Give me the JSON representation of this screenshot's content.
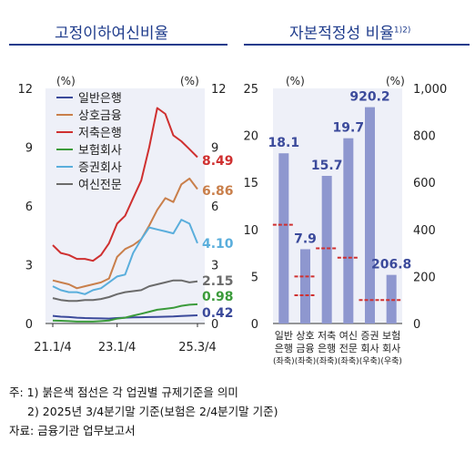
{
  "titles": {
    "left": "고정이하여신비율",
    "right": "자본적정성 비율",
    "right_sup": "1)2)"
  },
  "chart_data": [
    {
      "type": "line",
      "title": "고정이하여신비율",
      "unit_left": "(%)",
      "unit_right": "(%)",
      "ylim": [
        0,
        12
      ],
      "yticks": [
        "0",
        "3",
        "6",
        "9",
        "12"
      ],
      "x_tick_labels": [
        "21.1/4",
        "23.1/4",
        "25.3/4"
      ],
      "x": [
        "21.1/4",
        "21.2/4",
        "21.3/4",
        "21.4/4",
        "22.1/4",
        "22.2/4",
        "22.3/4",
        "22.4/4",
        "23.1/4",
        "23.2/4",
        "23.3/4",
        "23.4/4",
        "24.1/4",
        "24.2/4",
        "24.3/4",
        "24.4/4",
        "25.1/4",
        "25.2/4",
        "25.3/4"
      ],
      "legend_position": "top-left",
      "series": [
        {
          "name": "일반은행",
          "color": "#3b4a9b",
          "end_label": "0.42",
          "values": [
            0.39,
            0.35,
            0.33,
            0.3,
            0.28,
            0.27,
            0.26,
            0.25,
            0.28,
            0.3,
            0.31,
            0.32,
            0.33,
            0.34,
            0.35,
            0.36,
            0.38,
            0.4,
            0.42
          ]
        },
        {
          "name": "상호금융",
          "color": "#c97f4b",
          "end_label": "6.86",
          "values": [
            2.2,
            2.1,
            2.0,
            1.8,
            1.9,
            2.0,
            2.1,
            2.3,
            3.4,
            3.8,
            4.0,
            4.3,
            5.0,
            5.8,
            6.4,
            6.2,
            7.1,
            7.4,
            6.86
          ]
        },
        {
          "name": "저축은행",
          "color": "#cf3030",
          "end_label": "8.49",
          "values": [
            4.0,
            3.6,
            3.5,
            3.3,
            3.3,
            3.2,
            3.5,
            4.1,
            5.1,
            5.5,
            6.4,
            7.3,
            9.0,
            11.0,
            10.7,
            9.6,
            9.3,
            8.9,
            8.49
          ]
        },
        {
          "name": "보험회사",
          "color": "#3b9b3b",
          "end_label": "0.98",
          "values": [
            0.15,
            0.14,
            0.12,
            0.1,
            0.1,
            0.1,
            0.12,
            0.15,
            0.25,
            0.3,
            0.4,
            0.5,
            0.6,
            0.7,
            0.75,
            0.8,
            0.9,
            0.96,
            0.98
          ]
        },
        {
          "name": "증권회사",
          "color": "#5aaedc",
          "end_label": "4.10",
          "values": [
            1.9,
            1.7,
            1.6,
            1.6,
            1.5,
            1.7,
            1.8,
            2.1,
            2.4,
            2.5,
            3.6,
            4.3,
            4.9,
            4.8,
            4.7,
            4.6,
            5.3,
            5.1,
            4.1
          ]
        },
        {
          "name": "여신전문",
          "color": "#6b6b6b",
          "end_label": "2.15",
          "values": [
            1.3,
            1.2,
            1.15,
            1.15,
            1.2,
            1.2,
            1.25,
            1.35,
            1.5,
            1.6,
            1.65,
            1.7,
            1.9,
            2.0,
            2.1,
            2.2,
            2.2,
            2.1,
            2.15
          ]
        }
      ]
    },
    {
      "type": "bar",
      "title": "자본적정성 비율",
      "unit_left": "(%)",
      "unit_right": "(%)",
      "yleft_lim": [
        0,
        25
      ],
      "yleft_ticks": [
        "0",
        "5",
        "10",
        "15",
        "20",
        "25"
      ],
      "yright_lim": [
        0,
        1000
      ],
      "yright_ticks": [
        "0",
        "200",
        "400",
        "600",
        "800",
        "1,000"
      ],
      "bar_color": "#8e97cf",
      "label_color": "#3b4a9b",
      "threshold_color": "#cf3030",
      "categories": [
        {
          "line1": "일반",
          "line2": "은행",
          "axis": "(좌축)",
          "value": 18.1,
          "label": "18.1",
          "scale": "left",
          "threshold": 10.5
        },
        {
          "line1": "상호",
          "line2": "금융",
          "axis": "(좌축)",
          "value": 7.9,
          "label": "7.9",
          "scale": "left",
          "threshold": 5.0
        },
        {
          "line1": "저축",
          "line2": "은행",
          "axis": "(좌축)",
          "value": 15.7,
          "label": "15.7",
          "scale": "left",
          "threshold": 8.0
        },
        {
          "line1": "여신",
          "line2": "전문",
          "axis": "(좌축)",
          "value": 19.7,
          "label": "19.7",
          "scale": "left",
          "threshold": 7.0
        },
        {
          "line1": "증권",
          "line2": "회사",
          "axis": "(우축)",
          "value": 920.2,
          "label": "920.2",
          "scale": "right",
          "threshold": 100
        },
        {
          "line1": "보험",
          "line2": "회사",
          "axis": "(우축)",
          "value": 206.8,
          "label": "206.8",
          "scale": "right",
          "threshold": 100
        }
      ],
      "extra_threshold_left": 3.0,
      "extra_threshold_cat": 1
    }
  ],
  "notes": [
    "주: 1) 붉은색 점선은 각 업권별 규제기준을 의미",
    "2) 2025년 3/4분기말 기준(보험은 2/4분기말 기준)",
    "자료: 금융기관 업무보고서"
  ]
}
